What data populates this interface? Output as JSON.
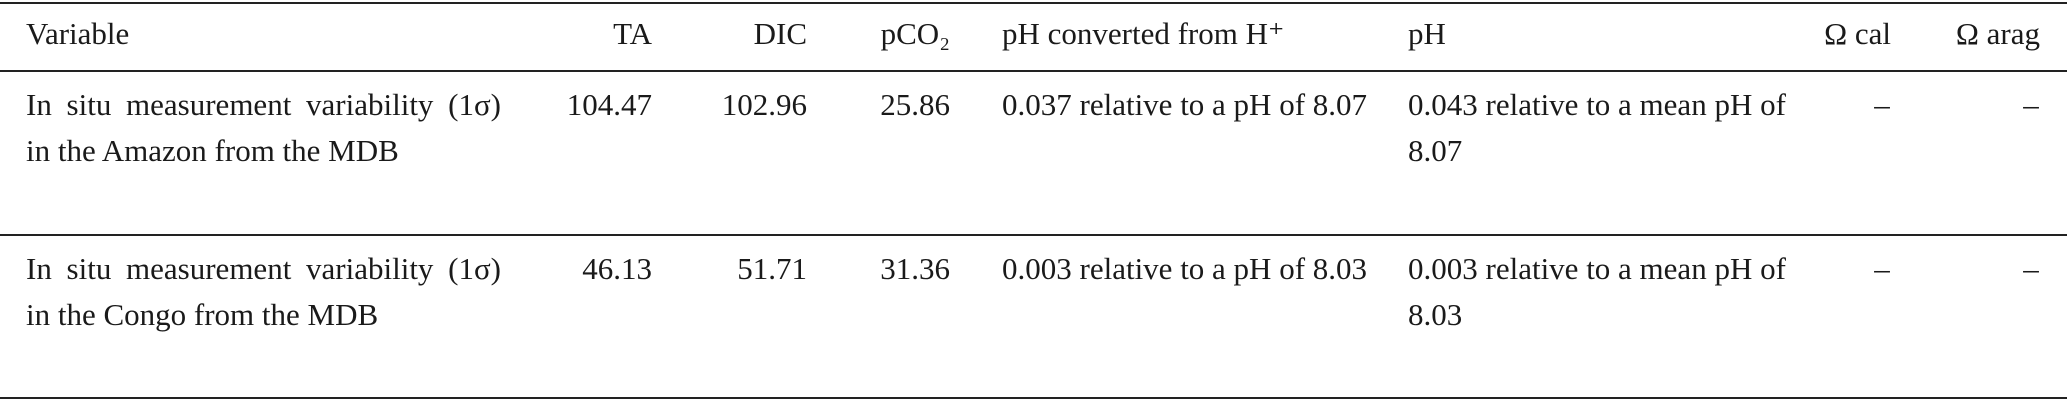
{
  "table": {
    "header": [
      "Variable",
      "TA",
      "DIC",
      "pCO₂",
      "pH converted from H⁺",
      "pH",
      "Ω cal",
      "Ω arag"
    ],
    "rows": [
      [
        "In situ measurement variability (1σ) in the Amazon from the MDB",
        "104.47",
        "102.96",
        "25.86",
        "0.037 relative to a pH of 8.07",
        "0.043 relative to a mean pH of 8.07",
        "–",
        "–"
      ],
      [
        "In situ measurement variability (1σ) in the Congo from the MDB",
        "46.13",
        "51.71",
        "31.36",
        "0.003 relative to a pH of 8.03",
        "0.003 relative to a mean pH of 8.03",
        "–",
        "–"
      ]
    ]
  }
}
